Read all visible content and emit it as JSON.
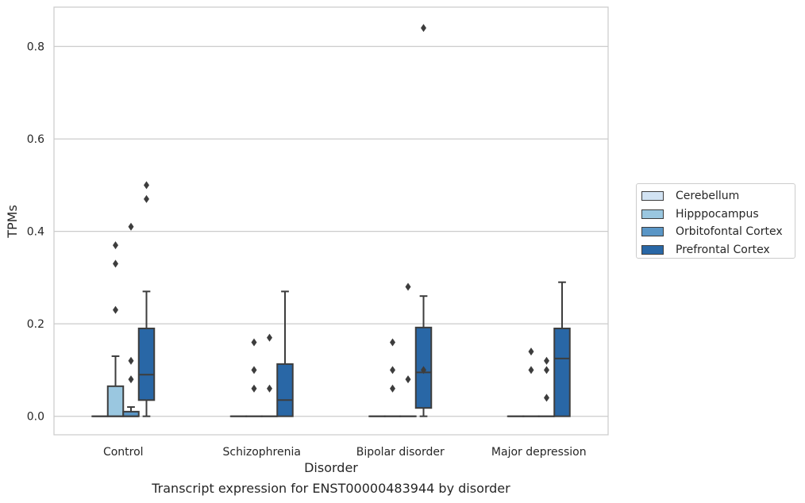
{
  "chart_data": {
    "type": "box",
    "xlabel": "Disorder",
    "ylabel": "TPMs",
    "ylim": [
      -0.04,
      0.885
    ],
    "yticks": [
      0.0,
      0.2,
      0.4,
      0.6,
      0.8
    ],
    "ytick_labels": [
      "0.0",
      "0.2",
      "0.4",
      "0.6",
      "0.8"
    ],
    "grid": "horizontal",
    "legend_position": "right",
    "categories": [
      "Control",
      "Schizophrenia",
      "Bipolar disorder",
      "Major depression"
    ],
    "series": [
      {
        "name": "Cerebellum",
        "color": "#d2e3f3",
        "boxes": [
          {
            "q1": 0,
            "median": 0,
            "q3": 0,
            "whisker_low": 0,
            "whisker_high": 0,
            "outliers": []
          },
          {
            "q1": 0,
            "median": 0,
            "q3": 0,
            "whisker_low": 0,
            "whisker_high": 0,
            "outliers": []
          },
          {
            "q1": 0,
            "median": 0,
            "q3": 0,
            "whisker_low": 0,
            "whisker_high": 0,
            "outliers": []
          },
          {
            "q1": 0,
            "median": 0,
            "q3": 0,
            "whisker_low": 0,
            "whisker_high": 0,
            "outliers": []
          }
        ]
      },
      {
        "name": "Hipppocampus",
        "color": "#9ac7e0",
        "boxes": [
          {
            "q1": 0,
            "median": 0,
            "q3": 0.065,
            "whisker_low": 0,
            "whisker_high": 0.13,
            "outliers": [
              0.23,
              0.33,
              0.37
            ]
          },
          {
            "q1": 0,
            "median": 0,
            "q3": 0,
            "whisker_low": 0,
            "whisker_high": 0,
            "outliers": [
              0.06,
              0.1,
              0.16
            ]
          },
          {
            "q1": 0,
            "median": 0,
            "q3": 0,
            "whisker_low": 0,
            "whisker_high": 0,
            "outliers": [
              0.06,
              0.1,
              0.16
            ]
          },
          {
            "q1": 0,
            "median": 0,
            "q3": 0,
            "whisker_low": 0,
            "whisker_high": 0,
            "outliers": [
              0.1,
              0.14
            ]
          }
        ]
      },
      {
        "name": "Orbitofontal Cortex",
        "color": "#5a96c6",
        "boxes": [
          {
            "q1": 0,
            "median": 0,
            "q3": 0.01,
            "whisker_low": 0,
            "whisker_high": 0.02,
            "outliers": [
              0.08,
              0.12,
              0.41
            ]
          },
          {
            "q1": 0,
            "median": 0,
            "q3": 0,
            "whisker_low": 0,
            "whisker_high": 0,
            "outliers": [
              0.06,
              0.17
            ]
          },
          {
            "q1": 0,
            "median": 0,
            "q3": 0,
            "whisker_low": 0,
            "whisker_high": 0,
            "outliers": [
              0.08,
              0.28
            ]
          },
          {
            "q1": 0,
            "median": 0,
            "q3": 0,
            "whisker_low": 0,
            "whisker_high": 0,
            "outliers": [
              0.04,
              0.1,
              0.12
            ]
          }
        ]
      },
      {
        "name": "Prefrontal Cortex",
        "color": "#2967a6",
        "boxes": [
          {
            "q1": 0.035,
            "median": 0.09,
            "q3": 0.19,
            "whisker_low": 0,
            "whisker_high": 0.27,
            "outliers": [
              0.47,
              0.5
            ]
          },
          {
            "q1": 0,
            "median": 0.035,
            "q3": 0.113,
            "whisker_low": 0,
            "whisker_high": 0.27,
            "outliers": []
          },
          {
            "q1": 0.018,
            "median": 0.095,
            "q3": 0.192,
            "whisker_low": 0,
            "whisker_high": 0.26,
            "outliers": [
              0.1,
              0.84
            ]
          },
          {
            "q1": 0,
            "median": 0.125,
            "q3": 0.19,
            "whisker_low": 0,
            "whisker_high": 0.29,
            "outliers": []
          }
        ]
      }
    ]
  },
  "caption": "Transcript expression for ENST00000483944 by disorder"
}
